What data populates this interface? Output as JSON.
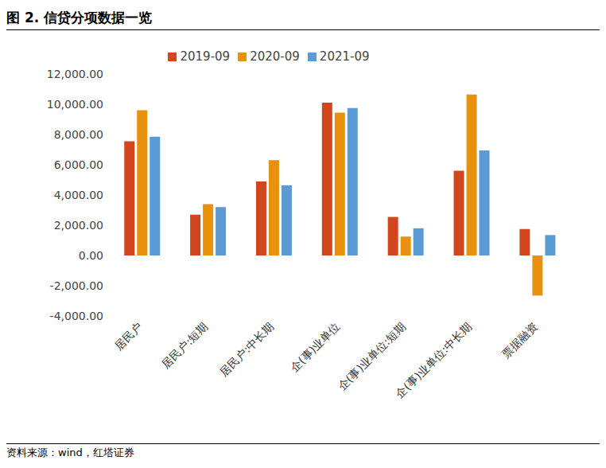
{
  "title": "图 2. 信贷分项数据一览",
  "source": "资料来源：wind，红塔证券",
  "chart_data": {
    "type": "bar",
    "categories": [
      "居民户",
      "居民户:短期",
      "居民户:中长期",
      "企(事)业单位",
      "企(事)业单位:短期",
      "企(事)业单位:中长期",
      "票据融资"
    ],
    "series": [
      {
        "name": "2019-09",
        "color": "#d2461e",
        "values": [
          7550,
          2700,
          4900,
          10100,
          2550,
          5600,
          1750
        ]
      },
      {
        "name": "2020-09",
        "color": "#e8910f",
        "values": [
          9600,
          3400,
          6300,
          9450,
          1250,
          10650,
          -2650
        ]
      },
      {
        "name": "2021-09",
        "color": "#5b9bd5",
        "values": [
          7850,
          3200,
          4650,
          9750,
          1800,
          6950,
          1350
        ]
      }
    ],
    "ylim": [
      -4000,
      12000
    ],
    "yticks": [
      {
        "value": -4000,
        "label": "-4,000.00"
      },
      {
        "value": -2000,
        "label": "-2,000.00"
      },
      {
        "value": 0,
        "label": "0.00"
      },
      {
        "value": 2000,
        "label": "2,000.00"
      },
      {
        "value": 4000,
        "label": "4,000.00"
      },
      {
        "value": 6000,
        "label": "6,000.00"
      },
      {
        "value": 8000,
        "label": "8,000.00"
      },
      {
        "value": 10000,
        "label": "10,000.00"
      },
      {
        "value": 12000,
        "label": "12,000.00"
      }
    ],
    "legend": "top",
    "grid": false
  }
}
